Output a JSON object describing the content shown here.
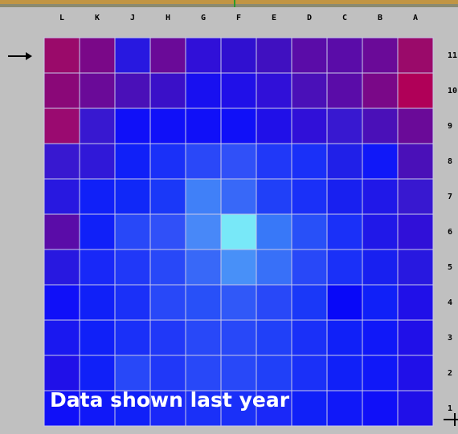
{
  "columns": [
    "L",
    "K",
    "J",
    "H",
    "G",
    "F",
    "E",
    "D",
    "C",
    "B",
    "A"
  ],
  "rows": [
    "11",
    "10",
    "9",
    "8",
    "7",
    "6",
    "5",
    "4",
    "3",
    "2",
    "1"
  ],
  "overlay_text": "Data shown last year",
  "cell_colors": [
    [
      "#9a0a6a",
      "#7a0888",
      "#2818e0",
      "#6a0a98",
      "#3010d8",
      "#3010d0",
      "#4010c0",
      "#5a0ca8",
      "#5a0ca8",
      "#6a0a98",
      "#9a0a6a"
    ],
    [
      "#8a0878",
      "#6a0a98",
      "#4a10b8",
      "#3a10c8",
      "#1810f0",
      "#2010e8",
      "#3010d8",
      "#4a10b8",
      "#5a0ca8",
      "#7a0888",
      "#b00058"
    ],
    [
      "#9a0a70",
      "#3818d0",
      "#1010f8",
      "#1010f8",
      "#1010f8",
      "#1010f8",
      "#2010e8",
      "#3010d8",
      "#3818d0",
      "#4a10b8",
      "#6a0a98"
    ],
    [
      "#3818d0",
      "#3018d8",
      "#1020f8",
      "#1a30f8",
      "#2a48f8",
      "#3050f8",
      "#2038f8",
      "#1a30f8",
      "#2020e8",
      "#1018f8",
      "#4a10b8"
    ],
    [
      "#2818e0",
      "#1020f8",
      "#1028f8",
      "#1a38f8",
      "#4080f8",
      "#3868f8",
      "#2040f8",
      "#1a30f8",
      "#1820f0",
      "#2018e8",
      "#3818d0"
    ],
    [
      "#5a0ca8",
      "#1020f8",
      "#2848f8",
      "#3050f8",
      "#4888f8",
      "#78e8f8",
      "#3878f8",
      "#2850f8",
      "#1a30f8",
      "#2018e8",
      "#3010d8"
    ],
    [
      "#2818e0",
      "#1828f8",
      "#2038f8",
      "#2848f8",
      "#3868f8",
      "#4890f8",
      "#3870f8",
      "#2848f8",
      "#1a30f8",
      "#1820f0",
      "#2818e0"
    ],
    [
      "#1010f8",
      "#1020f8",
      "#1a30f8",
      "#2848f8",
      "#2850f8",
      "#3058f8",
      "#2848f8",
      "#1a38f8",
      "#0808f8",
      "#1020f8",
      "#2010e8"
    ],
    [
      "#1a18f0",
      "#1020f8",
      "#1a30f8",
      "#2038f8",
      "#2848f8",
      "#2848f8",
      "#2040f8",
      "#1a30f8",
      "#1020f8",
      "#1018f8",
      "#2010e8"
    ],
    [
      "#2010e8",
      "#1020f8",
      "#2848f8",
      "#2038f8",
      "#2848f8",
      "#2848f8",
      "#2040f8",
      "#1a30f8",
      "#1020f8",
      "#1018f8",
      "#2010e8"
    ],
    [
      "#1010f8",
      "#1018f8",
      "#1020f8",
      "#1a28f8",
      "#1a30f8",
      "#1a30f8",
      "#1a28f8",
      "#1020f8",
      "#1018f8",
      "#1010f8",
      "#2010e8"
    ]
  ]
}
